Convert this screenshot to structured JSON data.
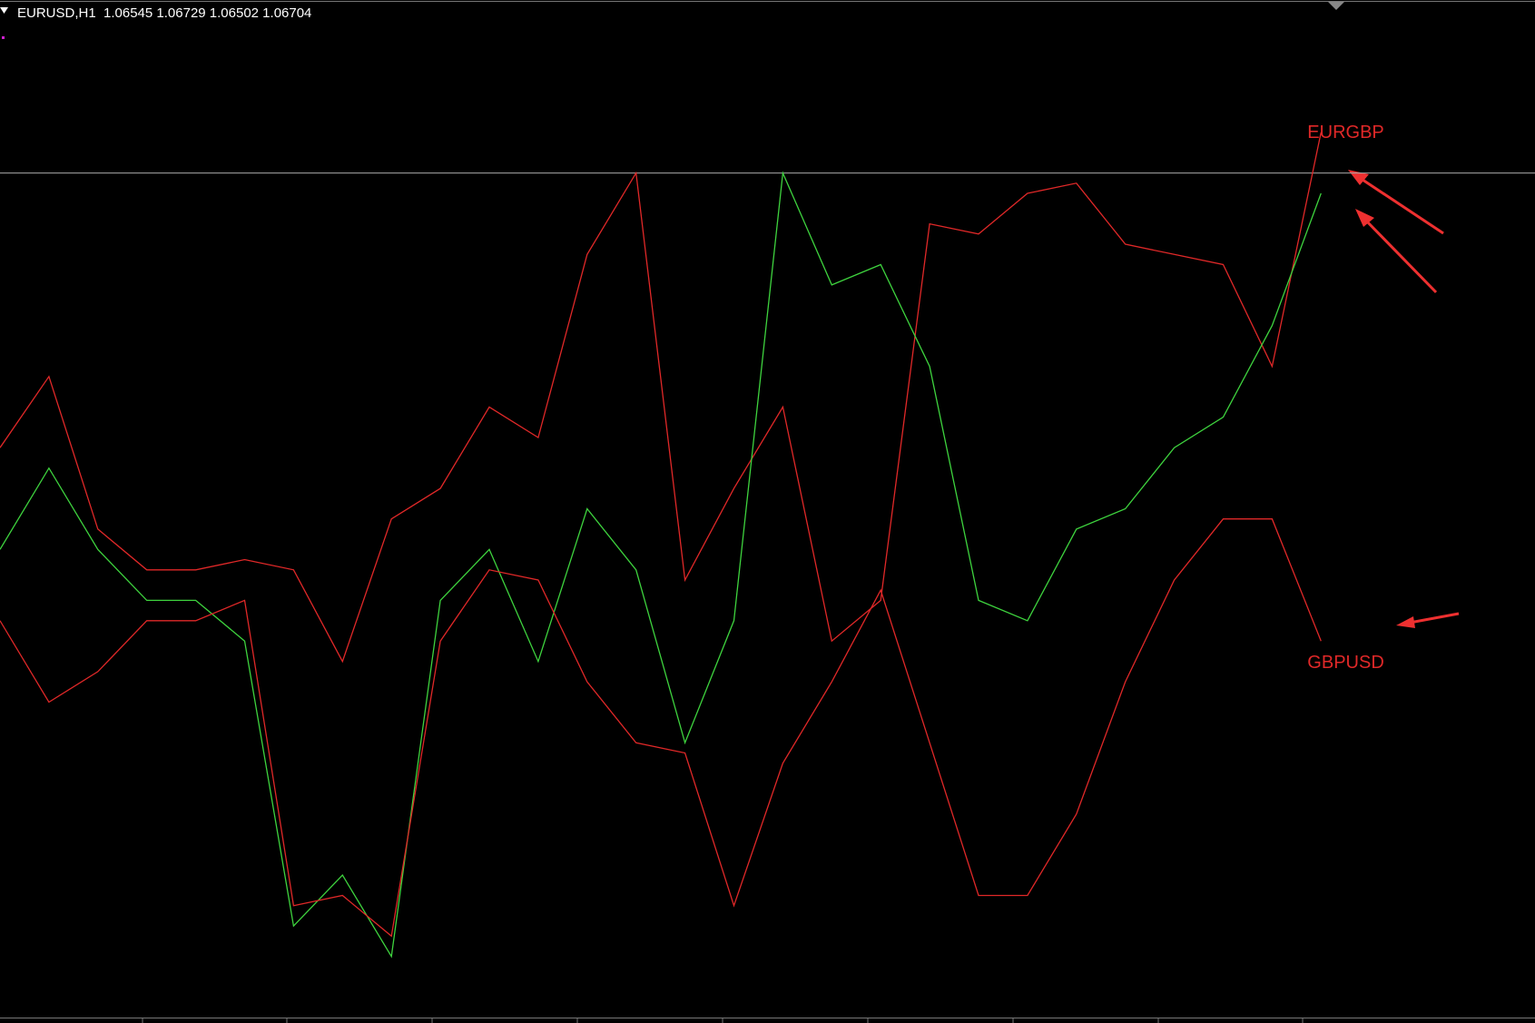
{
  "chart_data": {
    "type": "line",
    "title": "EURUSD,H1  1.06545 1.06729 1.06502 1.06704",
    "ylim": [
      0,
      100
    ],
    "hline": 83,
    "series": [
      {
        "name": "EURGBP",
        "color": "#e02828",
        "values": [
          56,
          63,
          48,
          44,
          44,
          45,
          44,
          35,
          49,
          52,
          60,
          57,
          75,
          83,
          43,
          52,
          60,
          37,
          41,
          78,
          77,
          81,
          82,
          76,
          75,
          74,
          64,
          87
        ]
      },
      {
        "color": "#3ed33e",
        "values": [
          46,
          54,
          46,
          41,
          41,
          37,
          9,
          14,
          6,
          41,
          46,
          35,
          50,
          44,
          27,
          39,
          83,
          72,
          74,
          64,
          41,
          39,
          48,
          50,
          56,
          59,
          68,
          81
        ]
      },
      {
        "name": "GBPUSD",
        "color": "#e02828",
        "values": [
          39,
          31,
          34,
          39,
          39,
          41,
          11,
          12,
          8,
          37,
          44,
          43,
          33,
          27,
          26,
          11,
          25,
          33,
          42,
          27,
          12,
          12,
          20,
          33,
          43,
          49,
          49,
          37
        ]
      }
    ]
  }
}
